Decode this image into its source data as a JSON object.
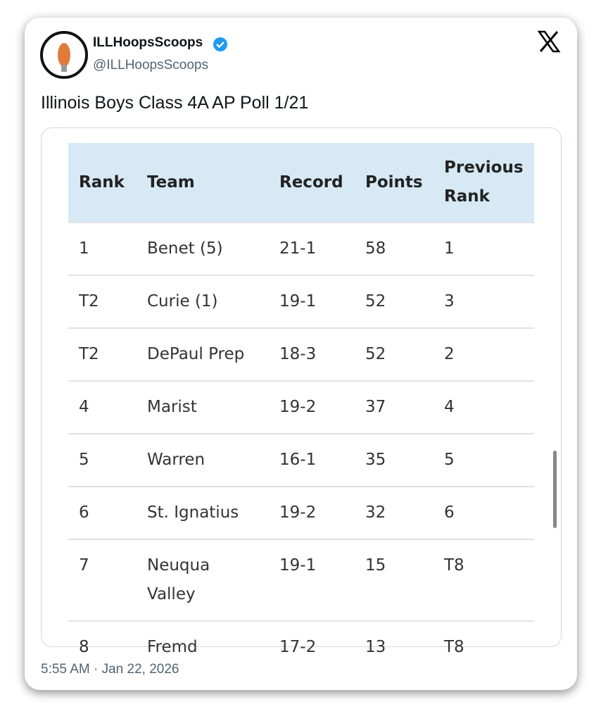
{
  "author": {
    "name": "ILLHoopsScoops",
    "handle": "@ILLHoopsScoops"
  },
  "post_text": "Illinois Boys Class 4A AP Poll 1/21",
  "table": {
    "headers": [
      "Rank",
      "Team",
      "Record",
      "Points",
      "Previous Rank"
    ],
    "rows": [
      [
        "1",
        "Benet (5)",
        "21-1",
        "58",
        "1"
      ],
      [
        "T2",
        "Curie (1)",
        "19-1",
        "52",
        "3"
      ],
      [
        "T2",
        "DePaul Prep",
        "18-3",
        "52",
        "2"
      ],
      [
        "4",
        "Marist",
        "19-2",
        "37",
        "4"
      ],
      [
        "5",
        "Warren",
        "16-1",
        "35",
        "5"
      ],
      [
        "6",
        "St. Ignatius",
        "19-2",
        "32",
        "6"
      ],
      [
        "7",
        "Neuqua Valley",
        "19-1",
        "15",
        "T8"
      ],
      [
        "8",
        "Fremd",
        "17-2",
        "13",
        "T8"
      ]
    ]
  },
  "timestamp": "5:55 AM · Jan 22, 2026"
}
